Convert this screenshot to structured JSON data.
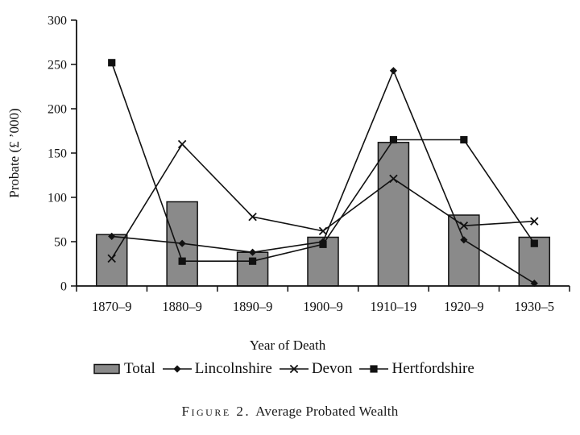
{
  "figure": {
    "caption_prefix": "Figure 2.",
    "caption_title": "Average Probated Wealth"
  },
  "colors": {
    "bar_fill": "#8a8a8a",
    "stroke": "#111111",
    "background": "#ffffff"
  },
  "chart_data": {
    "type": "combo-bar-line",
    "title": "Average Probated Wealth",
    "xlabel": "Year of Death",
    "ylabel": "Probate (£ ’000)",
    "ylim": [
      0,
      300
    ],
    "ytick_step": 50,
    "yticks": [
      0,
      50,
      100,
      150,
      200,
      250,
      300
    ],
    "grid": false,
    "legend_position": "bottom",
    "categories": [
      "1870–9",
      "1880–9",
      "1890–9",
      "1900–9",
      "1910–19",
      "1920–9",
      "1930–5"
    ],
    "series": [
      {
        "name": "Total",
        "type": "bar",
        "marker": "rect",
        "values": [
          58,
          95,
          38,
          55,
          162,
          80,
          55
        ]
      },
      {
        "name": "Lincolnshire",
        "type": "line",
        "marker": "diamond",
        "values": [
          56,
          48,
          38,
          50,
          243,
          52,
          3
        ]
      },
      {
        "name": "Devon",
        "type": "line",
        "marker": "x",
        "values": [
          31,
          160,
          78,
          62,
          121,
          68,
          73
        ]
      },
      {
        "name": "Hertfordshire",
        "type": "line",
        "marker": "square",
        "values": [
          252,
          28,
          28,
          47,
          165,
          165,
          48
        ]
      }
    ]
  }
}
